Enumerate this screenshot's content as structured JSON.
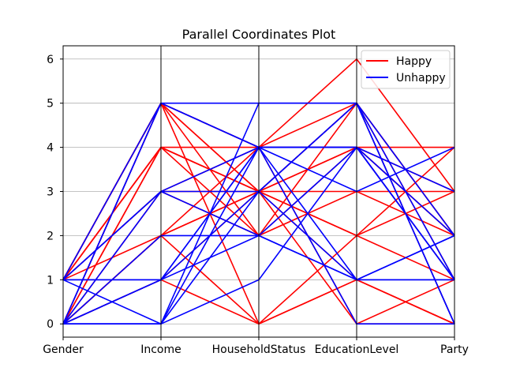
{
  "chart_data": {
    "type": "parallel_coordinates",
    "title": "Parallel Coordinates Plot",
    "axes": [
      "Gender",
      "Income",
      "HouseholdStatus",
      "EducationLevel",
      "Party"
    ],
    "ylim": [
      -0.3,
      6.3
    ],
    "yticks": [
      0,
      1,
      2,
      3,
      4,
      5,
      6
    ],
    "grid": true,
    "legend_placement": "top-right",
    "series": [
      {
        "name": "Happy",
        "color": "#ff0000",
        "lines": [
          [
            1,
            5,
            4,
            6,
            3
          ],
          [
            1,
            5,
            0,
            1,
            0
          ],
          [
            1,
            4,
            3,
            2,
            1
          ],
          [
            1,
            4,
            4,
            4,
            2
          ],
          [
            1,
            2,
            3,
            5,
            2
          ],
          [
            1,
            3,
            3,
            4,
            3
          ],
          [
            0,
            5,
            2,
            5,
            2
          ],
          [
            0,
            4,
            3,
            3,
            3
          ],
          [
            0,
            2,
            3,
            4,
            1
          ],
          [
            0,
            2,
            4,
            4,
            2
          ],
          [
            0,
            1,
            3,
            2,
            3
          ],
          [
            0,
            1,
            0,
            1,
            0
          ],
          [
            0,
            4,
            3,
            1,
            0
          ],
          [
            1,
            5,
            3,
            5,
            1
          ],
          [
            0,
            3,
            2,
            4,
            4
          ],
          [
            1,
            5,
            4,
            0,
            1
          ],
          [
            0,
            2,
            0,
            2,
            4
          ],
          [
            1,
            4,
            2,
            3,
            2
          ],
          [
            0,
            5,
            3,
            0,
            0
          ],
          [
            1,
            3,
            4,
            5,
            0
          ]
        ]
      },
      {
        "name": "Unhappy",
        "color": "#0000ff",
        "lines": [
          [
            1,
            5,
            5,
            5,
            1
          ],
          [
            1,
            3,
            4,
            4,
            2
          ],
          [
            0,
            0,
            4,
            4,
            1
          ],
          [
            0,
            0,
            5,
            5,
            0
          ],
          [
            0,
            1,
            2,
            1,
            1
          ],
          [
            1,
            1,
            4,
            3,
            4
          ],
          [
            0,
            5,
            4,
            1,
            2
          ],
          [
            0,
            2,
            2,
            4,
            1
          ],
          [
            1,
            0,
            3,
            5,
            2
          ],
          [
            0,
            1,
            4,
            0,
            0
          ],
          [
            1,
            3,
            2,
            1,
            1
          ],
          [
            0,
            5,
            4,
            4,
            3
          ],
          [
            0,
            0,
            1,
            4,
            1
          ],
          [
            1,
            1,
            3,
            5,
            0
          ],
          [
            0,
            3,
            3,
            1,
            2
          ]
        ]
      }
    ]
  }
}
